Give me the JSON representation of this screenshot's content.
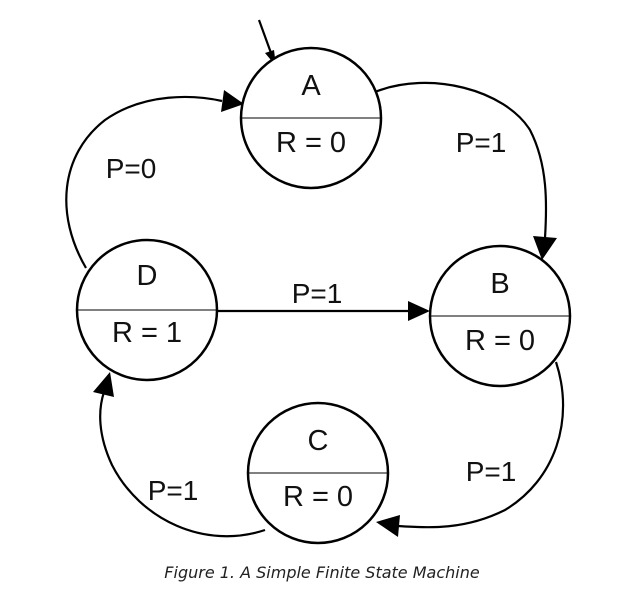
{
  "states": [
    {
      "id": "A",
      "name": "A",
      "output": "R = 0"
    },
    {
      "id": "B",
      "name": "B",
      "output": "R = 0"
    },
    {
      "id": "C",
      "name": "C",
      "output": "R = 0"
    },
    {
      "id": "D",
      "name": "D",
      "output": "R = 1"
    }
  ],
  "transitions": [
    {
      "from": "A",
      "to": "B",
      "label": "P=1"
    },
    {
      "from": "B",
      "to": "C",
      "label": "P=1"
    },
    {
      "from": "C",
      "to": "D",
      "label": "P=1"
    },
    {
      "from": "D",
      "to": "A",
      "label": "P=0"
    },
    {
      "from": "D",
      "to": "B",
      "label": "P=1"
    }
  ],
  "initial_state": "A",
  "caption": "Figure 1. A Simple Finite State Machine"
}
